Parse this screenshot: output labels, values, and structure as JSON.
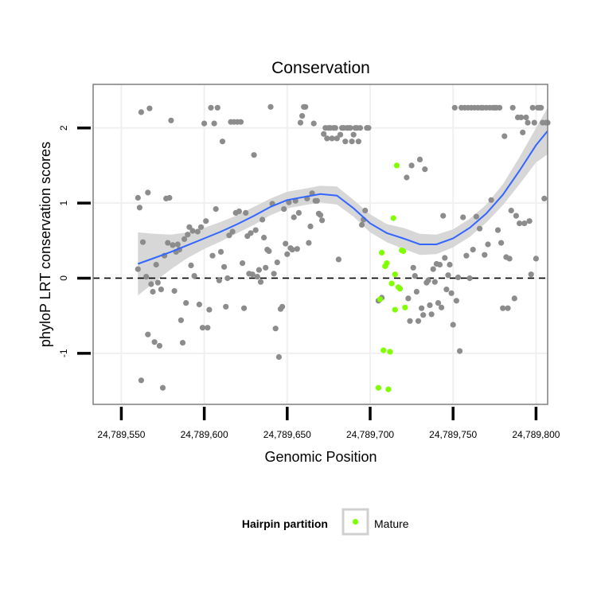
{
  "chart_data": {
    "type": "scatter",
    "title": "Conservation",
    "xlabel": "Genomic Position",
    "ylabel": "phyloP LRT conservation scores",
    "xlim": [
      24789533,
      24789807
    ],
    "ylim": [
      -1.68,
      2.58
    ],
    "x_ticks": [
      24789550,
      24789600,
      24789650,
      24789700,
      24789750,
      24789800
    ],
    "x_tick_labels": [
      "24,789,550",
      "24,789,600",
      "24,789,650",
      "24,789,700",
      "24,789,750",
      "24,789,800"
    ],
    "y_ticks": [
      -1,
      0,
      1,
      2
    ],
    "y_tick_labels": [
      "-1",
      "0",
      "1",
      "2"
    ],
    "grid": true,
    "reference_line": {
      "y": 0,
      "style": "dashed",
      "color": "#000000"
    },
    "legend": {
      "title": "Hairpin partition",
      "position": "bottom",
      "entries": [
        {
          "label": "Mature",
          "color": "#7fff00"
        }
      ]
    },
    "colors": {
      "other": "#8c8c8c",
      "mature": "#7fff00",
      "smooth": "#3366ff",
      "band": "#d3d3d3",
      "panel_border": "#7f7f7f",
      "grid": "#f0f0f0"
    },
    "series": [
      {
        "group": "other",
        "points": [
          [
            24789560,
            1.07
          ],
          [
            24789560,
            0.12
          ],
          [
            24789561,
            0.94
          ],
          [
            24789562,
            2.21
          ],
          [
            24789562,
            -1.36
          ],
          [
            24789563,
            0.48
          ],
          [
            24789565,
            0.02
          ],
          [
            24789566,
            -0.75
          ],
          [
            24789566,
            1.14
          ],
          [
            24789567,
            2.26
          ],
          [
            24789568,
            -0.08
          ],
          [
            24789569,
            -0.18
          ],
          [
            24789570,
            -0.85
          ],
          [
            24789571,
            0.18
          ],
          [
            24789572,
            -0.06
          ],
          [
            24789573,
            -0.9
          ],
          [
            24789574,
            -0.15
          ],
          [
            24789575,
            -1.46
          ],
          [
            24789576,
            0.3
          ],
          [
            24789577,
            1.06
          ],
          [
            24789578,
            0.47
          ],
          [
            24789579,
            1.07
          ],
          [
            24789580,
            2.1
          ],
          [
            24789581,
            0.44
          ],
          [
            24789582,
            -0.17
          ],
          [
            24789583,
            0.35
          ],
          [
            24789584,
            0.45
          ],
          [
            24789585,
            0.38
          ],
          [
            24789586,
            -0.56
          ],
          [
            24789587,
            -0.86
          ],
          [
            24789588,
            0.52
          ],
          [
            24789589,
            -0.33
          ],
          [
            24789590,
            0.58
          ],
          [
            24789591,
            0.68
          ],
          [
            24789592,
            0.17
          ],
          [
            24789593,
            0.63
          ],
          [
            24789594,
            0.03
          ],
          [
            24789596,
            0.62
          ],
          [
            24789597,
            -0.35
          ],
          [
            24789598,
            0.68
          ],
          [
            24789599,
            -0.66
          ],
          [
            24789600,
            2.06
          ],
          [
            24789601,
            0.76
          ],
          [
            24789602,
            -0.66
          ],
          [
            24789603,
            -0.42
          ],
          [
            24789604,
            2.27
          ],
          [
            24789605,
            0.3
          ],
          [
            24789606,
            2.06
          ],
          [
            24789607,
            0.92
          ],
          [
            24789608,
            2.27
          ],
          [
            24789609,
            -0.03
          ],
          [
            24789610,
            0.35
          ],
          [
            24789611,
            1.82
          ],
          [
            24789612,
            0.15
          ],
          [
            24789613,
            -0.38
          ],
          [
            24789614,
            0.0
          ],
          [
            24789615,
            0.57
          ],
          [
            24789616,
            2.08
          ],
          [
            24789617,
            0.62
          ],
          [
            24789618,
            2.08
          ],
          [
            24789619,
            0.87
          ],
          [
            24789620,
            2.08
          ],
          [
            24789621,
            0.89
          ],
          [
            24789622,
            2.08
          ],
          [
            24789623,
            0.2
          ],
          [
            24789624,
            -0.4
          ],
          [
            24789625,
            0.87
          ],
          [
            24789626,
            0.56
          ],
          [
            24789627,
            0.06
          ],
          [
            24789628,
            0.6
          ],
          [
            24789629,
            0.05
          ],
          [
            24789630,
            1.64
          ],
          [
            24789631,
            0.64
          ],
          [
            24789632,
            0.02
          ],
          [
            24789633,
            0.11
          ],
          [
            24789634,
            -0.05
          ],
          [
            24789635,
            0.78
          ],
          [
            24789636,
            0.54
          ],
          [
            24789637,
            0.14
          ],
          [
            24789638,
            0.38
          ],
          [
            24789639,
            0.36
          ],
          [
            24789640,
            2.28
          ],
          [
            24789641,
            0.99
          ],
          [
            24789642,
            0.06
          ],
          [
            24789643,
            -0.67
          ],
          [
            24789644,
            0.21
          ],
          [
            24789645,
            -1.05
          ],
          [
            24789646,
            -0.41
          ],
          [
            24789647,
            -0.38
          ],
          [
            24789648,
            0.92
          ],
          [
            24789649,
            0.46
          ],
          [
            24789650,
            0.32
          ],
          [
            24789651,
            1.01
          ],
          [
            24789652,
            0.4
          ],
          [
            24789653,
            0.38
          ],
          [
            24789654,
            0.81
          ],
          [
            24789655,
            1.03
          ],
          [
            24789656,
            0.39
          ],
          [
            24789657,
            0.87
          ],
          [
            24789658,
            2.07
          ],
          [
            24789659,
            2.16
          ],
          [
            24789660,
            2.28
          ],
          [
            24789661,
            2.28
          ],
          [
            24789662,
            1.06
          ],
          [
            24789663,
            0.47
          ],
          [
            24789664,
            0.69
          ],
          [
            24789665,
            1.13
          ],
          [
            24789666,
            2.06
          ],
          [
            24789667,
            1.03
          ],
          [
            24789668,
            1.03
          ],
          [
            24789669,
            0.86
          ],
          [
            24789670,
            0.84
          ],
          [
            24789671,
            0.77
          ],
          [
            24789672,
            1.92
          ],
          [
            24789673,
            2.0
          ],
          [
            24789674,
            1.86
          ],
          [
            24789675,
            2.0
          ],
          [
            24789676,
            2.0
          ],
          [
            24789677,
            1.86
          ],
          [
            24789678,
            2.0
          ],
          [
            24789679,
            2.0
          ],
          [
            24789680,
            1.86
          ],
          [
            24789681,
            0.25
          ],
          [
            24789682,
            1.91
          ],
          [
            24789683,
            2.0
          ],
          [
            24789684,
            2.0
          ],
          [
            24789685,
            1.82
          ],
          [
            24789686,
            2.0
          ],
          [
            24789687,
            2.0
          ],
          [
            24789688,
            2.0
          ],
          [
            24789689,
            1.82
          ],
          [
            24789690,
            1.91
          ],
          [
            24789691,
            2.0
          ],
          [
            24789692,
            2.0
          ],
          [
            24789693,
            1.82
          ],
          [
            24789694,
            2.0
          ],
          [
            24789695,
            0.71
          ],
          [
            24789696,
            0.78
          ],
          [
            24789697,
            0.9
          ],
          [
            24789698,
            2.0
          ],
          [
            24789699,
            2.0
          ],
          [
            24789705,
            -0.3
          ],
          [
            24789707,
            -0.26
          ],
          [
            24789722,
            1.34
          ],
          [
            24789723,
            -0.27
          ],
          [
            24789724,
            -0.57
          ],
          [
            24789725,
            1.5
          ],
          [
            24789726,
            0.14
          ],
          [
            24789727,
            0.03
          ],
          [
            24789728,
            -0.18
          ],
          [
            24789729,
            -0.57
          ],
          [
            24789730,
            1.58
          ],
          [
            24789731,
            -0.4
          ],
          [
            24789732,
            -0.49
          ],
          [
            24789733,
            1.45
          ],
          [
            24789734,
            -0.06
          ],
          [
            24789735,
            -0.03
          ],
          [
            24789736,
            -0.36
          ],
          [
            24789737,
            -0.48
          ],
          [
            24789738,
            0.12
          ],
          [
            24789739,
            -0.05
          ],
          [
            24789740,
            0.19
          ],
          [
            24789741,
            -0.33
          ],
          [
            24789742,
            0.18
          ],
          [
            24789743,
            -0.39
          ],
          [
            24789744,
            0.83
          ],
          [
            24789745,
            0.27
          ],
          [
            24789746,
            -0.15
          ],
          [
            24789747,
            0.04
          ],
          [
            24789748,
            0.18
          ],
          [
            24789749,
            -0.2
          ],
          [
            24789750,
            -0.62
          ],
          [
            24789751,
            2.27
          ],
          [
            24789752,
            -0.3
          ],
          [
            24789753,
            0.01
          ],
          [
            24789754,
            -0.97
          ],
          [
            24789755,
            2.27
          ],
          [
            24789756,
            0.81
          ],
          [
            24789757,
            2.27
          ],
          [
            24789758,
            0.3
          ],
          [
            24789759,
            2.27
          ],
          [
            24789760,
            0.0
          ],
          [
            24789761,
            2.27
          ],
          [
            24789762,
            0.38
          ],
          [
            24789763,
            2.27
          ],
          [
            24789764,
            0.82
          ],
          [
            24789765,
            2.27
          ],
          [
            24789766,
            0.66
          ],
          [
            24789767,
            2.27
          ],
          [
            24789768,
            2.27
          ],
          [
            24789769,
            0.31
          ],
          [
            24789770,
            2.27
          ],
          [
            24789771,
            0.45
          ],
          [
            24789772,
            2.27
          ],
          [
            24789773,
            1.04
          ],
          [
            24789774,
            2.27
          ],
          [
            24789775,
            2.27
          ],
          [
            24789776,
            2.27
          ],
          [
            24789777,
            0.64
          ],
          [
            24789778,
            2.27
          ],
          [
            24789779,
            0.47
          ],
          [
            24789780,
            -0.4
          ],
          [
            24789781,
            1.89
          ],
          [
            24789782,
            0.28
          ],
          [
            24789783,
            -0.4
          ],
          [
            24789784,
            0.26
          ],
          [
            24789785,
            0.9
          ],
          [
            24789786,
            2.27
          ],
          [
            24789787,
            -0.27
          ],
          [
            24789788,
            0.83
          ],
          [
            24789789,
            2.14
          ],
          [
            24789790,
            0.73
          ],
          [
            24789791,
            2.14
          ],
          [
            24789792,
            1.94
          ],
          [
            24789793,
            0.73
          ],
          [
            24789794,
            2.14
          ],
          [
            24789795,
            2.07
          ],
          [
            24789796,
            0.76
          ],
          [
            24789797,
            0.05
          ],
          [
            24789798,
            2.27
          ],
          [
            24789799,
            2.07
          ],
          [
            24789800,
            0.26
          ],
          [
            24789801,
            2.27
          ],
          [
            24789802,
            2.27
          ],
          [
            24789803,
            2.27
          ],
          [
            24789804,
            2.07
          ],
          [
            24789805,
            1.06
          ],
          [
            24789806,
            2.07
          ],
          [
            24789807,
            2.07
          ]
        ]
      },
      {
        "group": "mature",
        "name": "Mature",
        "points": [
          [
            24789705,
            -1.46
          ],
          [
            24789706,
            -0.28
          ],
          [
            24789707,
            0.34
          ],
          [
            24789708,
            -0.96
          ],
          [
            24789709,
            0.16
          ],
          [
            24789710,
            0.2
          ],
          [
            24789711,
            -1.48
          ],
          [
            24789712,
            -0.98
          ],
          [
            24789713,
            -0.07
          ],
          [
            24789714,
            0.8
          ],
          [
            24789715,
            -0.42
          ],
          [
            24789715,
            0.05
          ],
          [
            24789716,
            1.5
          ],
          [
            24789717,
            -0.12
          ],
          [
            24789718,
            -0.14
          ],
          [
            24789719,
            0.37
          ],
          [
            24789720,
            0.36
          ],
          [
            24789721,
            -0.39
          ]
        ]
      }
    ],
    "smooth_line": {
      "method": "loess",
      "x": [
        24789560,
        24789570,
        24789580,
        24789590,
        24789600,
        24789610,
        24789620,
        24789630,
        24789640,
        24789650,
        24789660,
        24789670,
        24789680,
        24789690,
        24789700,
        24789710,
        24789720,
        24789730,
        24789740,
        24789750,
        24789760,
        24789770,
        24789780,
        24789790,
        24789800,
        24789807
      ],
      "y": [
        0.19,
        0.27,
        0.35,
        0.44,
        0.53,
        0.62,
        0.72,
        0.83,
        0.95,
        1.04,
        1.08,
        1.12,
        1.1,
        0.93,
        0.73,
        0.6,
        0.53,
        0.45,
        0.45,
        0.53,
        0.67,
        0.86,
        1.11,
        1.43,
        1.77,
        1.96
      ],
      "ci_lower": [
        -0.23,
        -0.05,
        0.12,
        0.27,
        0.39,
        0.49,
        0.6,
        0.71,
        0.84,
        0.93,
        0.97,
        1.01,
        0.98,
        0.82,
        0.61,
        0.48,
        0.39,
        0.31,
        0.32,
        0.41,
        0.55,
        0.74,
        0.97,
        1.25,
        1.54,
        1.65
      ],
      "ci_upper": [
        0.61,
        0.59,
        0.58,
        0.61,
        0.67,
        0.75,
        0.84,
        0.95,
        1.06,
        1.15,
        1.19,
        1.23,
        1.22,
        1.04,
        0.85,
        0.72,
        0.67,
        0.59,
        0.58,
        0.65,
        0.79,
        0.98,
        1.25,
        1.61,
        2.0,
        2.27
      ]
    }
  }
}
